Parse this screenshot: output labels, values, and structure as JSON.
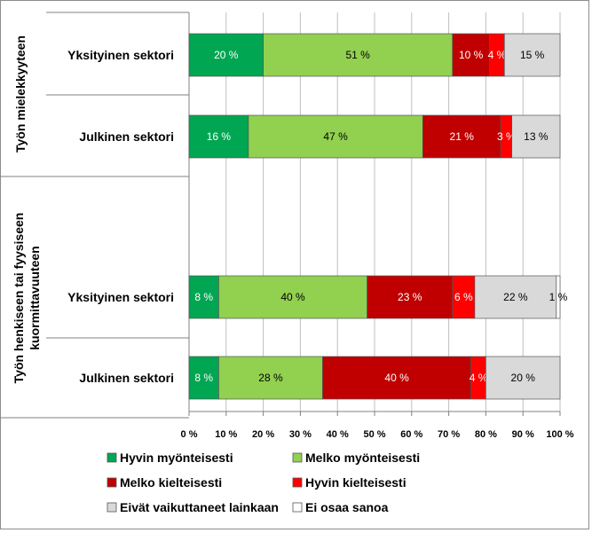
{
  "chart_data": {
    "type": "bar",
    "orientation": "horizontal",
    "stacked": "percent",
    "groups": [
      {
        "label": "Työn mielekkyyteen",
        "categories": [
          "Yksityinen sektori",
          "Julkinen sektori"
        ]
      },
      {
        "label": "Työn henkiseen tai fyysiseen kuormittavuuteen",
        "categories": [
          "Yksityinen sektori",
          "Julkinen sektori"
        ]
      }
    ],
    "categories": [
      "Yksityinen sektori",
      "Julkinen sektori",
      "",
      "Yksityinen sektori",
      "Julkinen sektori"
    ],
    "series": [
      {
        "name": "Hyvin myönteisesti",
        "color": "#00a651",
        "label_color": "#ffffff",
        "values": [
          20,
          16,
          null,
          8,
          8
        ],
        "labels": [
          "20 %",
          "16 %",
          "",
          "8 %",
          "8 %"
        ]
      },
      {
        "name": "Melko myönteisesti",
        "color": "#92d050",
        "label_color": "#000000",
        "values": [
          51,
          47,
          null,
          40,
          28
        ],
        "labels": [
          "51 %",
          "47 %",
          "",
          "40 %",
          "28 %"
        ]
      },
      {
        "name": "Melko kielteisesti",
        "color": "#c00000",
        "label_color": "#ffffff",
        "values": [
          10,
          21,
          null,
          23,
          40
        ],
        "labels": [
          "10 %",
          "21 %",
          "",
          "23 %",
          "40 %"
        ]
      },
      {
        "name": "Hyvin kielteisesti",
        "color": "#ff0000",
        "label_color": "#ffffff",
        "values": [
          4,
          3,
          null,
          6,
          4
        ],
        "labels": [
          "4 %",
          "3 %",
          "",
          "6 %",
          "4 %"
        ]
      },
      {
        "name": "Eivät vaikuttaneet lainkaan",
        "color": "#d9d9d9",
        "label_color": "#000000",
        "values": [
          15,
          13,
          null,
          22,
          20
        ],
        "labels": [
          "15 %",
          "13 %",
          "",
          "22 %",
          "20 %"
        ]
      },
      {
        "name": "Ei osaa sanoa",
        "color": "#ffffff",
        "label_color": "#000000",
        "values": [
          0,
          0,
          null,
          1,
          0
        ],
        "labels": [
          "",
          "",
          "",
          "1 %",
          ""
        ]
      }
    ],
    "xticks": [
      "0 %",
      "10 %",
      "20 %",
      "30 %",
      "40 %",
      "50 %",
      "60 %",
      "70 %",
      "80 %",
      "90 %",
      "100 %"
    ],
    "xlim": [
      0,
      100
    ],
    "grid": true,
    "legend_position": "bottom"
  }
}
